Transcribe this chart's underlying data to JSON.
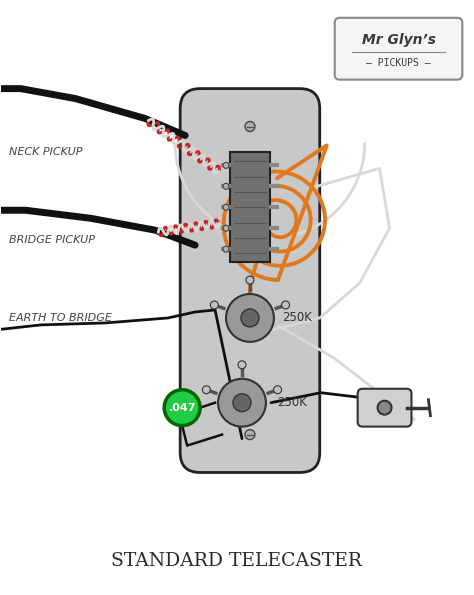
{
  "title": "STANDARD TELECASTER",
  "bg_color": "#ffffff",
  "logo_text1": "Mr Glyn’s",
  "logo_text2": "— PICKUPS —",
  "label_neck": "NECK PICKUP",
  "label_bridge": "BRIDGE PICKUP",
  "label_earth": "EARTH TO BRIDGE",
  "label_250k_vol": "250K",
  "label_250k_tone": "250K",
  "label_cap": ".047",
  "c_black": "#111111",
  "c_orange": "#e07820",
  "c_red": "#cc2222",
  "c_white": "#d8d8d8",
  "c_plate": "#c8c8c8",
  "c_plate_edge": "#222222",
  "c_pot": "#999999",
  "c_cap": "#22cc44",
  "c_logo_edge": "#888888",
  "c_text": "#444444"
}
